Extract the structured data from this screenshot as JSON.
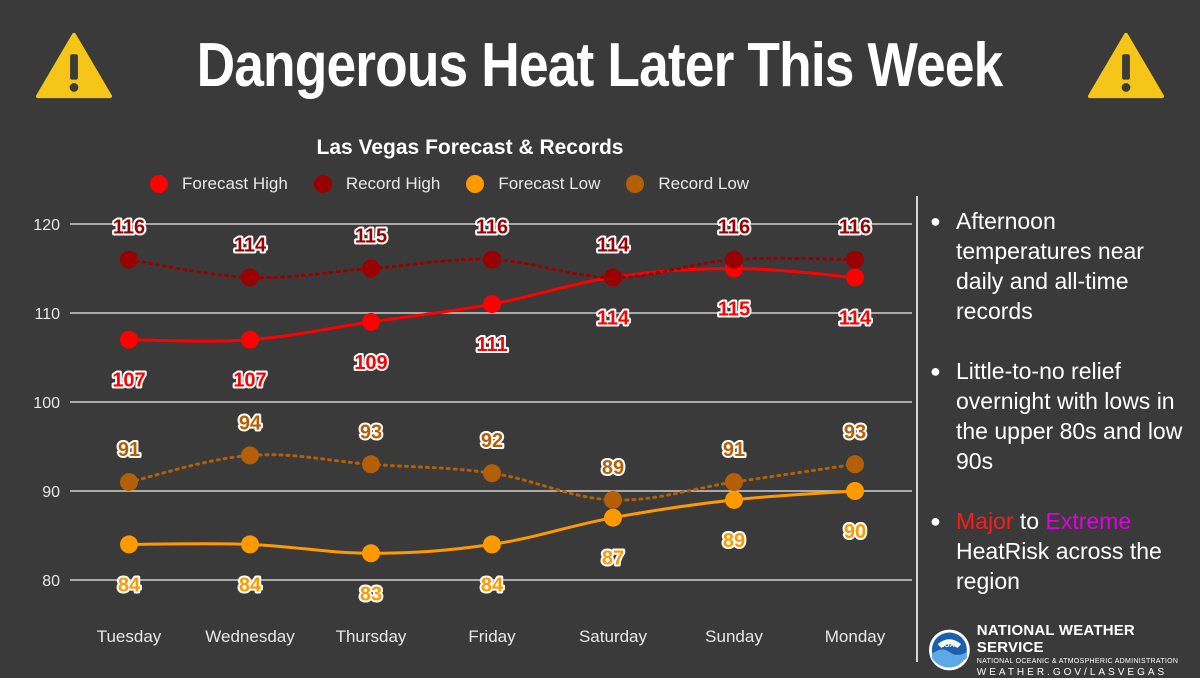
{
  "header": {
    "title": "Dangerous Heat Later This Week"
  },
  "notes": {
    "n1": "Afternoon temperatures near daily and all-time records",
    "n2": "Little-to-no relief overnight with lows in the upper 80s and low 90s",
    "n3_major": "Major",
    "n3_to": " to ",
    "n3_extreme": "Extreme",
    "n3_rest": " HeatRisk across the region"
  },
  "branding": {
    "org": "NATIONAL WEATHER SERVICE",
    "sub": "NATIONAL OCEANIC & ATMOSPHERIC ADMINISTRATION",
    "url": "WEATHER.GOV/LASVEGAS",
    "logo_text": "NOAA"
  },
  "chart_data": {
    "type": "line",
    "title": "Las Vegas Forecast & Records",
    "categories": [
      "Tuesday",
      "Wednesday",
      "Thursday",
      "Friday",
      "Saturday",
      "Sunday",
      "Monday"
    ],
    "y_ticks": [
      80,
      90,
      100,
      110,
      120
    ],
    "ylim": [
      78,
      122
    ],
    "grid": true,
    "legend_position": "top",
    "series": [
      {
        "name": "Forecast High",
        "color": "#ff0000",
        "style": "solid",
        "label_position": "below",
        "values": [
          107,
          107,
          109,
          111,
          114,
          115,
          114
        ]
      },
      {
        "name": "Record High",
        "color": "#990000",
        "style": "dotted",
        "label_position": "above",
        "values": [
          116,
          114,
          115,
          116,
          114,
          116,
          116
        ]
      },
      {
        "name": "Forecast Low",
        "color": "#ff9900",
        "style": "solid",
        "label_position": "below",
        "values": [
          84,
          84,
          83,
          84,
          87,
          89,
          90
        ]
      },
      {
        "name": "Record Low",
        "color": "#b45f06",
        "style": "dotted",
        "label_position": "above",
        "values": [
          91,
          94,
          93,
          92,
          89,
          91,
          93
        ]
      }
    ]
  }
}
